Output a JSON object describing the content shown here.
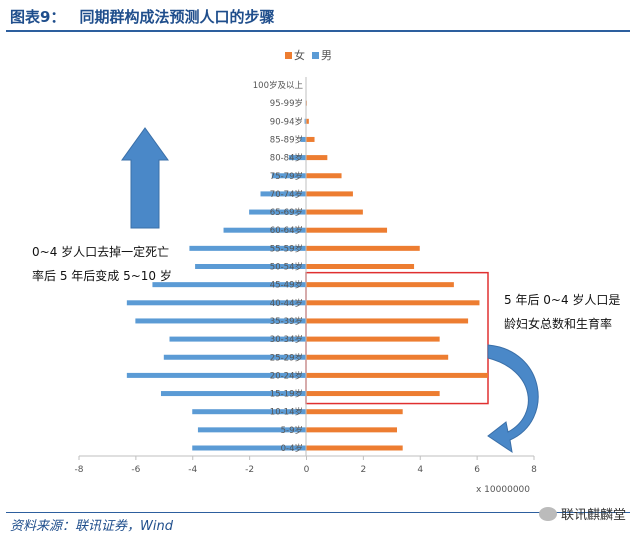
{
  "header": {
    "figure_no": "图表9：",
    "title": "同期群构成法预测人口的步骤"
  },
  "source": "资料来源：联讯证券，Wind",
  "watermark": "联讯麒麟堂",
  "annotations": {
    "left_line1": "0~4  岁人口去掉一定死亡",
    "left_line2": "率后 5 年后变成 5~10 岁",
    "right_line1": "5 年后 0~4  岁人口是",
    "right_line2": "龄妇女总数和生育率"
  },
  "colors": {
    "female": "#ED7D31",
    "male": "#5B9BD5",
    "highlight": "#E03030",
    "arrow": "#4A88C8"
  },
  "chart_data": {
    "type": "bar",
    "orientation": "horizontal",
    "categories": [
      "0-4岁",
      "5-9岁",
      "10-14岁",
      "15-19岁",
      "20-24岁",
      "25-29岁",
      "30-34岁",
      "35-39岁",
      "40-44岁",
      "45-49岁",
      "50-54岁",
      "55-59岁",
      "60-64岁",
      "65-69岁",
      "70-74岁",
      "75-79岁",
      "80-84岁",
      "85-89岁",
      "90-94岁",
      "95-99岁",
      "100岁及以上"
    ],
    "series": [
      {
        "name": "女",
        "values": [
          3.4,
          3.2,
          3.4,
          4.7,
          6.4,
          5.0,
          4.7,
          5.7,
          6.1,
          5.2,
          3.8,
          4.0,
          2.85,
          2.0,
          1.65,
          1.25,
          0.75,
          0.3,
          0.1,
          0.03,
          0.01
        ]
      },
      {
        "name": "男",
        "values": [
          -4.0,
          -3.8,
          -4.0,
          -5.1,
          -6.3,
          -5.0,
          -4.8,
          -6.0,
          -6.3,
          -5.4,
          -3.9,
          -4.1,
          -2.9,
          -2.0,
          -1.6,
          -1.2,
          -0.6,
          -0.2,
          -0.05,
          -0.02,
          -0.01
        ]
      }
    ],
    "xlim": [
      -8,
      8
    ],
    "xticks": [
      "-8",
      "-6",
      "-4",
      "-2",
      "0",
      "2",
      "4",
      "6",
      "8"
    ],
    "unit_label": "x 10000000",
    "legend_position": "top",
    "grid": false
  }
}
